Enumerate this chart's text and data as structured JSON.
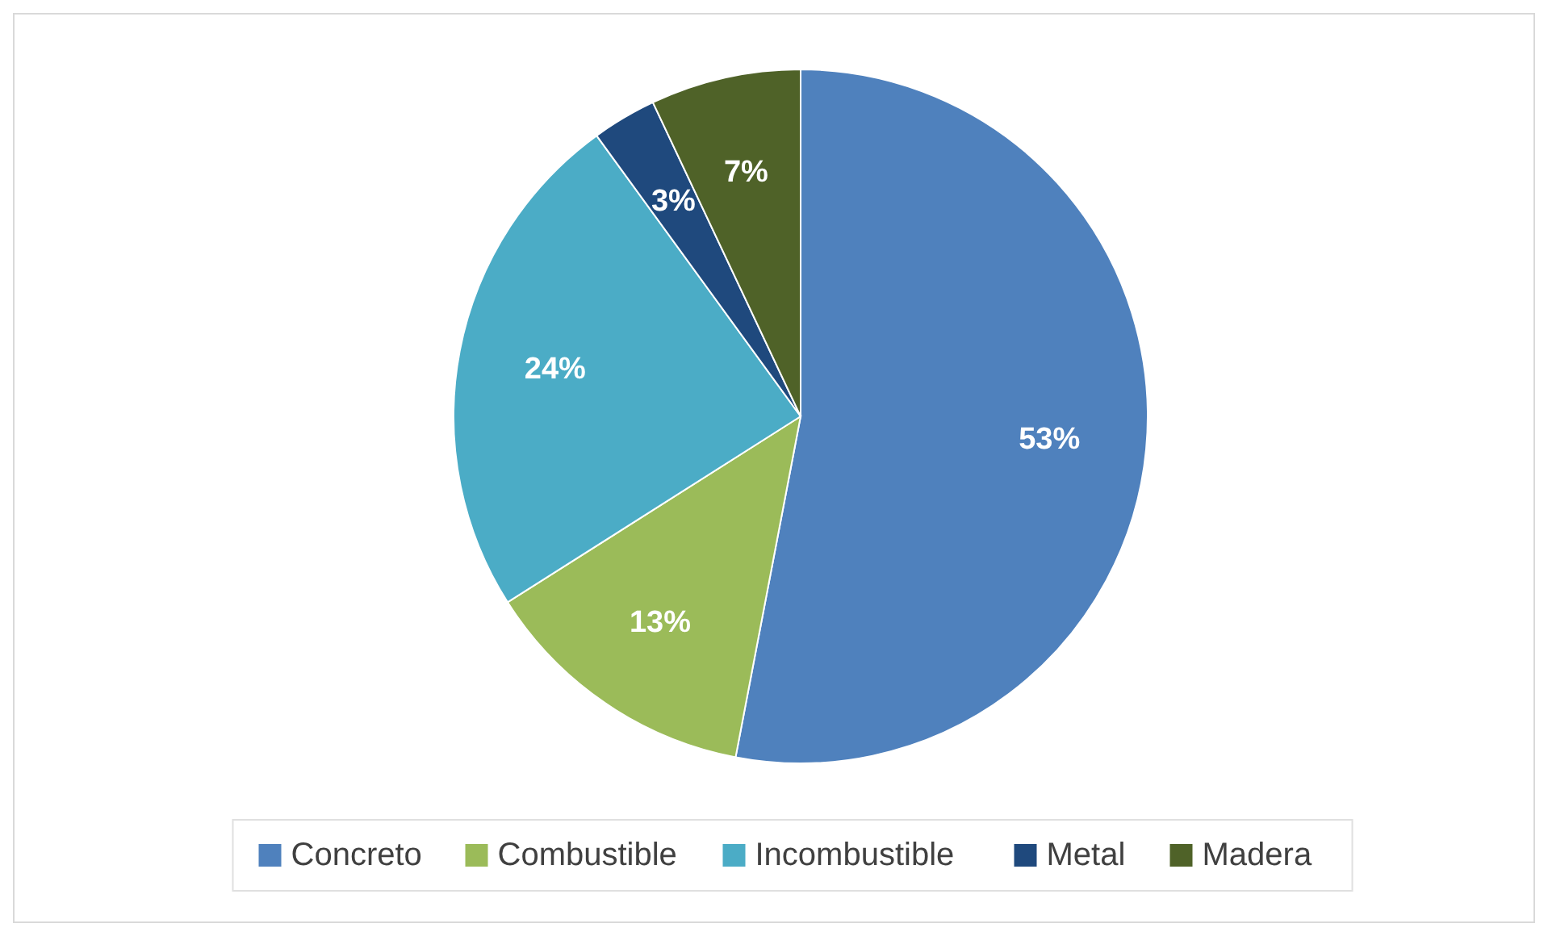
{
  "chart_data": {
    "type": "pie",
    "categories": [
      "Concreto",
      "Combustible",
      "Incombustible",
      "Metal",
      "Madera"
    ],
    "values": [
      53,
      13,
      24,
      3,
      7
    ],
    "colors": [
      "#4f81bd",
      "#9bbb59",
      "#4bacc6",
      "#1f497d",
      "#4f6228"
    ],
    "value_labels": [
      "53%",
      "13%",
      "24%",
      "3%",
      "7%"
    ],
    "legend": "bottom"
  }
}
